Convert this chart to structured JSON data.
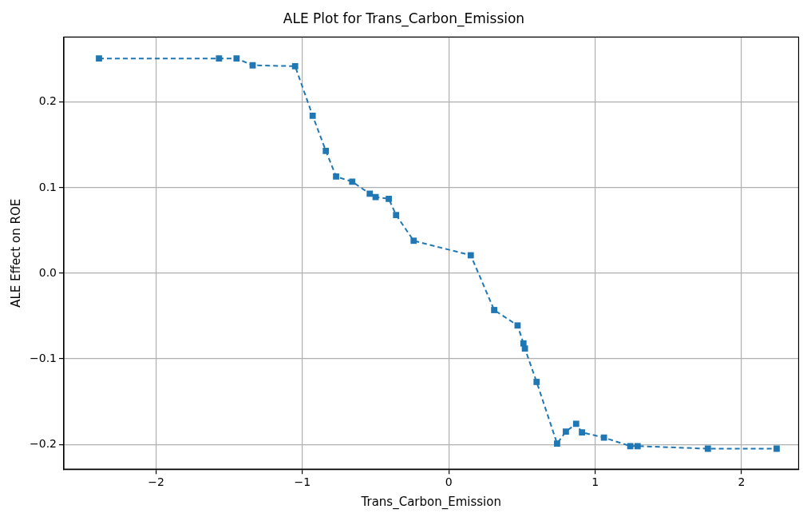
{
  "chart_data": {
    "type": "line",
    "title": "ALE Plot for Trans_Carbon_Emission",
    "xlabel": "Trans_Carbon_Emission",
    "ylabel": "ALE Effect on ROE",
    "x": [
      -2.39,
      -1.57,
      -1.45,
      -1.34,
      -1.05,
      -0.93,
      -0.84,
      -0.77,
      -0.66,
      -0.54,
      -0.5,
      -0.41,
      -0.36,
      -0.24,
      0.15,
      0.31,
      0.47,
      0.51,
      0.52,
      0.6,
      0.74,
      0.8,
      0.87,
      0.91,
      1.06,
      1.24,
      1.29,
      1.77,
      2.24
    ],
    "series": [
      {
        "color": "#1f77b4",
        "values": [
          0.251,
          0.251,
          0.251,
          0.243,
          0.242,
          0.184,
          0.143,
          0.113,
          0.107,
          0.093,
          0.089,
          0.087,
          0.068,
          0.038,
          0.021,
          -0.043,
          -0.061,
          -0.082,
          -0.088,
          -0.127,
          -0.199,
          -0.185,
          -0.176,
          -0.186,
          -0.192,
          -0.202,
          -0.202,
          -0.205,
          -0.205
        ]
      }
    ],
    "xlim": [
      -2.63,
      2.39
    ],
    "ylim": [
      -0.229,
      0.276
    ],
    "xticks": [
      {
        "value": -2,
        "label": "−2"
      },
      {
        "value": -1,
        "label": "−1"
      },
      0,
      1,
      2
    ],
    "yticks": [
      {
        "value": -0.2,
        "label": "−0.2"
      },
      {
        "value": -0.1,
        "label": "−0.1"
      },
      {
        "value": 0,
        "label": "0.0"
      },
      0.1,
      0.2
    ],
    "grid": true,
    "marker": "square",
    "line_style": "dashed",
    "legend": false
  }
}
